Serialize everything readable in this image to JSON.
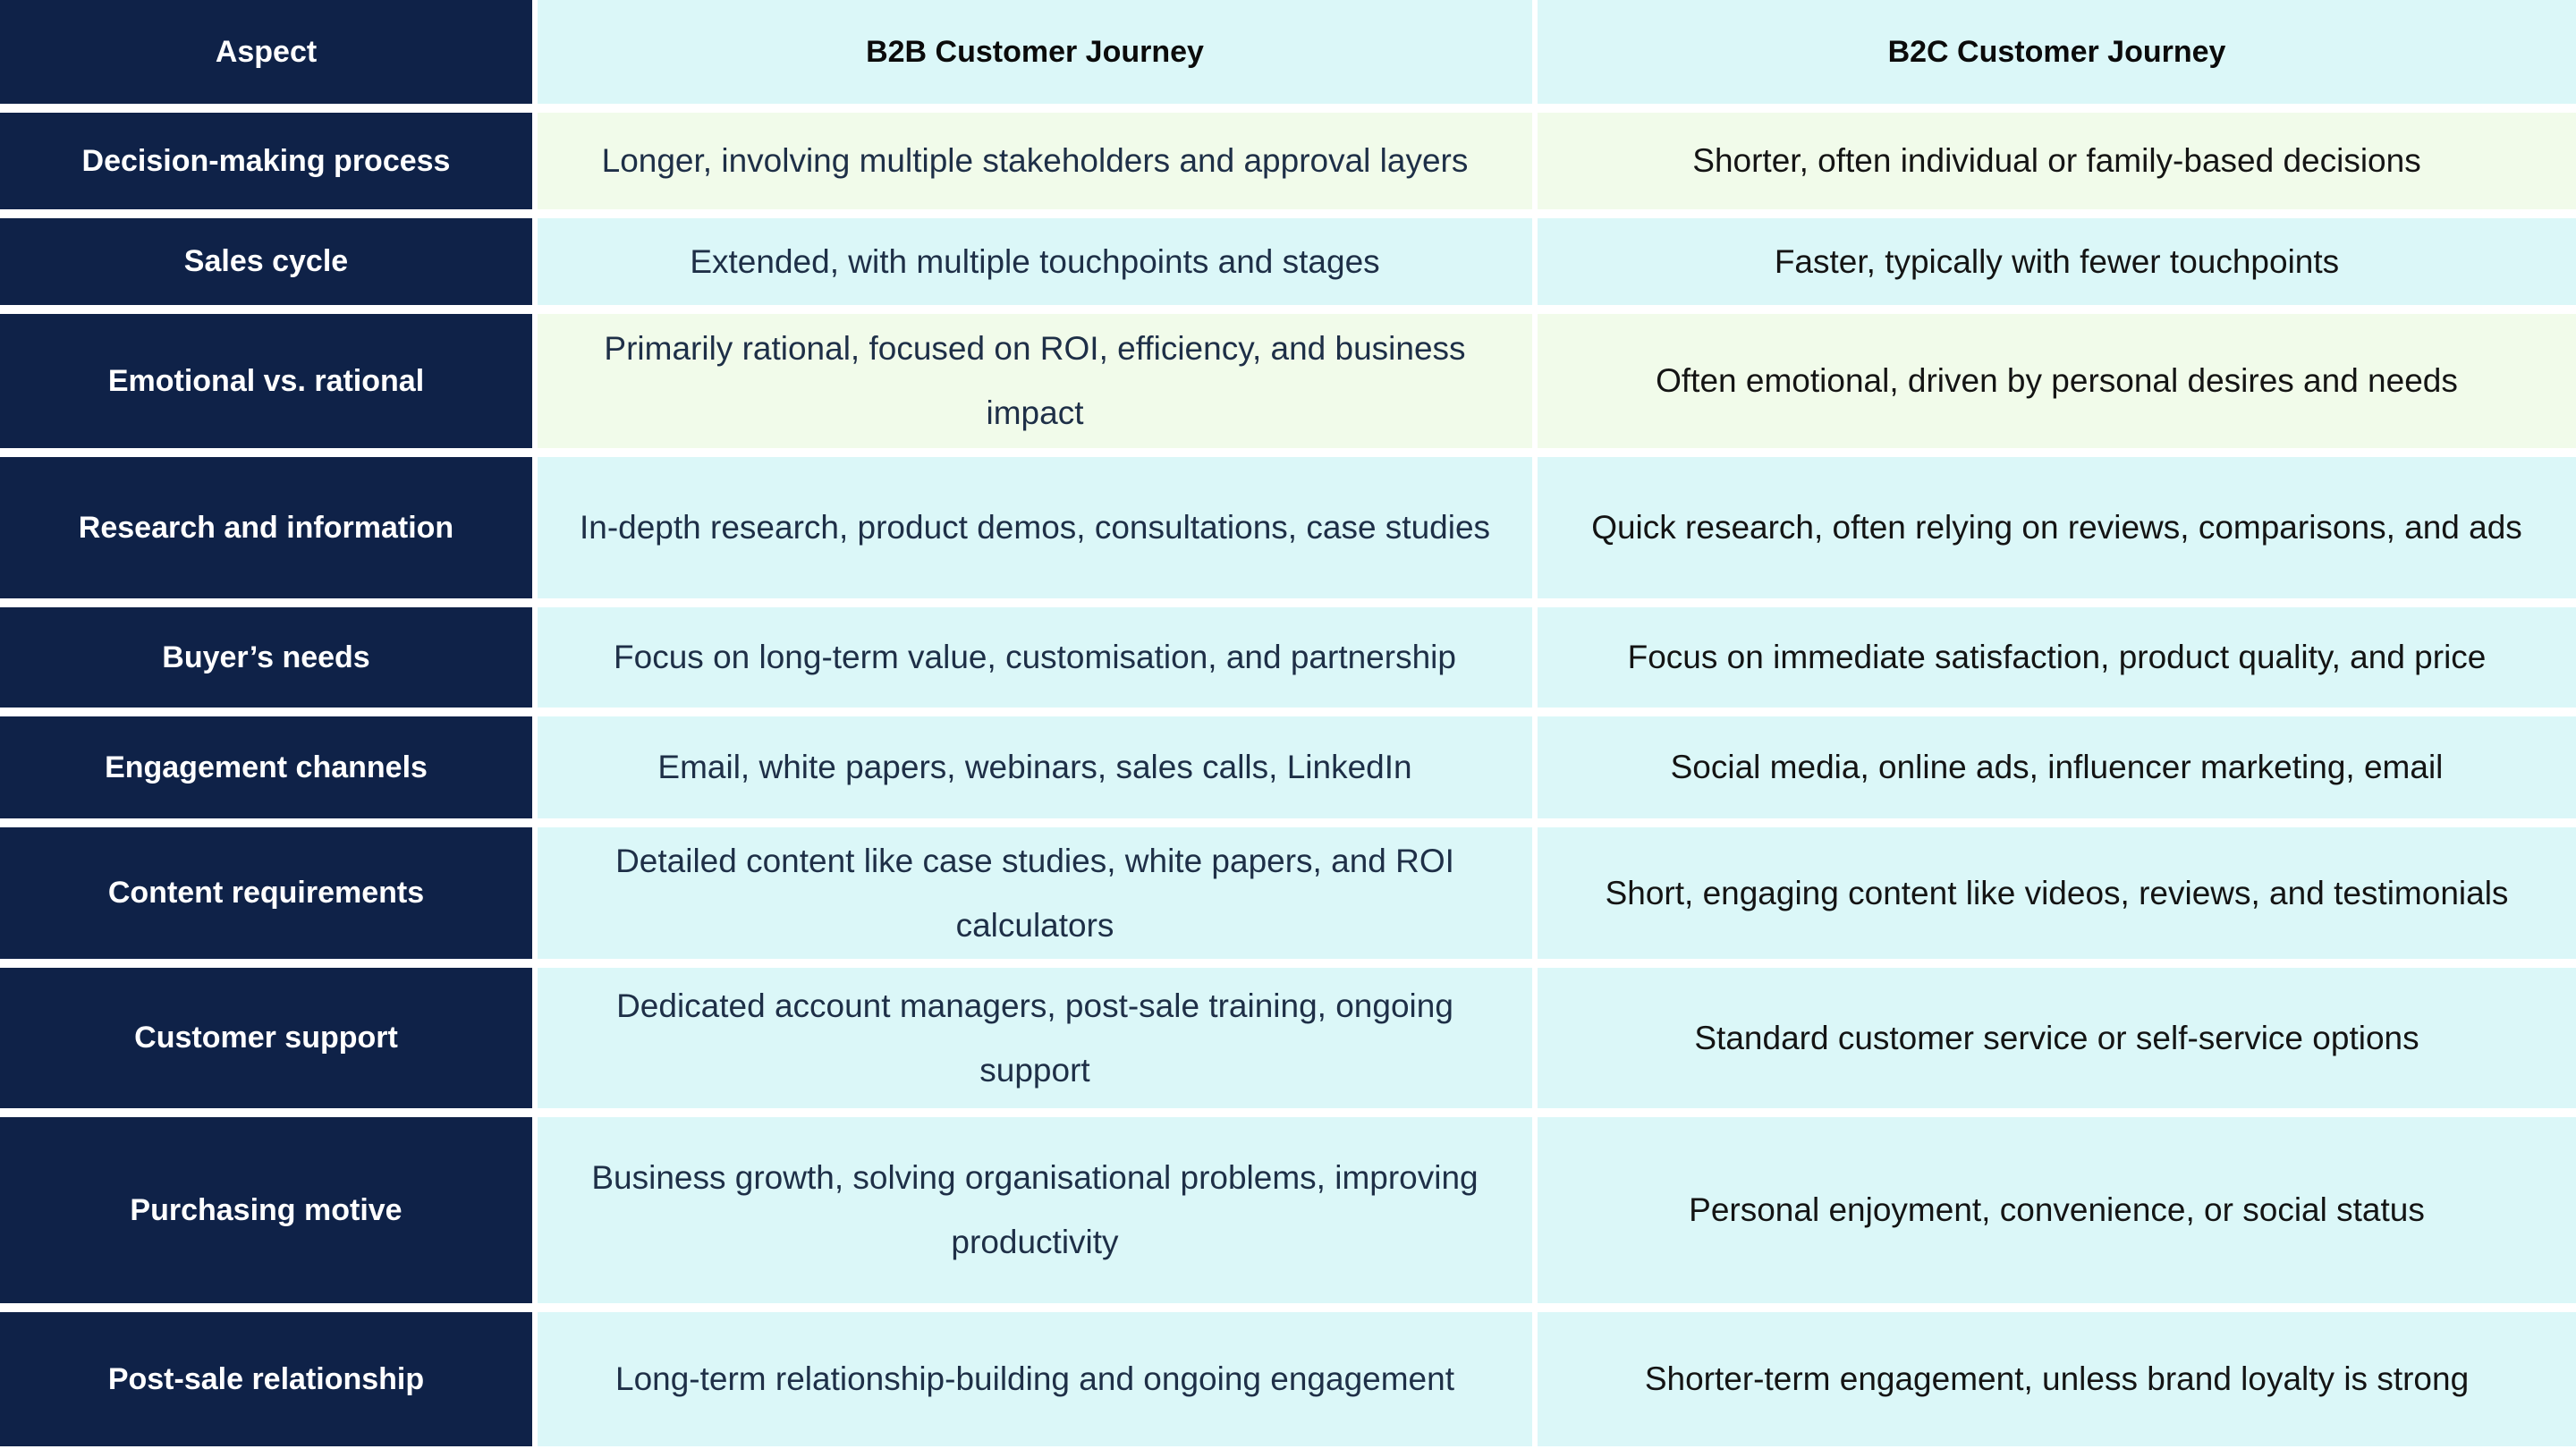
{
  "table": {
    "headers": {
      "aspect": "Aspect",
      "b2b": "B2B Customer Journey",
      "b2c": "B2C Customer Journey"
    },
    "rows": [
      {
        "aspect": "Decision-making process",
        "b2b": "Longer, involving multiple stakeholders and approval layers",
        "b2c": "Shorter, often individual or family-based decisions"
      },
      {
        "aspect": "Sales cycle",
        "b2b": "Extended, with multiple touchpoints and stages",
        "b2c": "Faster, typically with fewer touchpoints"
      },
      {
        "aspect": "Emotional vs. rational",
        "b2b": "Primarily rational, focused on ROI, efficiency, and business impact",
        "b2c": "Often emotional, driven by personal desires and needs"
      },
      {
        "aspect": "Research and information",
        "b2b": "In-depth research, product demos, consultations, case studies",
        "b2c": "Quick research, often relying on reviews, comparisons, and ads"
      },
      {
        "aspect": "Buyer’s needs",
        "b2b": "Focus on long-term value, customisation, and partnership",
        "b2c": "Focus on immediate satisfaction, product quality, and price"
      },
      {
        "aspect": "Engagement channels",
        "b2b": "Email, white papers, webinars, sales calls, LinkedIn",
        "b2c": "Social media, online ads, influencer marketing, email"
      },
      {
        "aspect": "Content requirements",
        "b2b": "Detailed content like case studies, white papers, and ROI calculators",
        "b2c": "Short, engaging content like videos, reviews, and testimonials"
      },
      {
        "aspect": "Customer support",
        "b2b": "Dedicated account managers, post-sale training, ongoing support",
        "b2c": "Standard customer service or self-service options"
      },
      {
        "aspect": "Purchasing motive",
        "b2b": "Business growth, solving organisational problems, improving productivity",
        "b2c": "Personal enjoyment, convenience, or social status"
      },
      {
        "aspect": "Post-sale relationship",
        "b2b": "Long-term relationship-building and ongoing engagement",
        "b2c": "Shorter-term engagement, unless brand loyalty is strong"
      }
    ]
  },
  "colors": {
    "aspect_bg": "#0f2248",
    "cyan_bg": "#dbf7f8",
    "green_bg": "#f1fbea"
  }
}
